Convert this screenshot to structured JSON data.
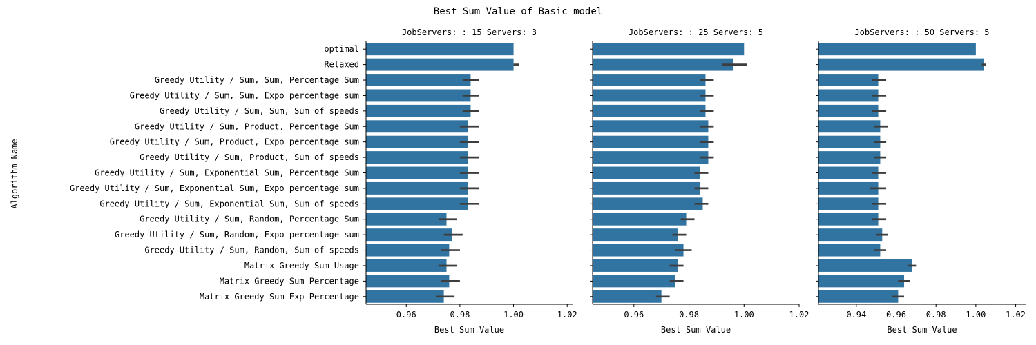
{
  "figure_title": "Best Sum Value of Basic model",
  "ylabel": "Algorithm Name",
  "colors": {
    "bar": "#3274a1",
    "error": "#3d3d3d"
  },
  "chart_data": [
    {
      "type": "bar",
      "orientation": "horizontal",
      "title": "JobServers: : 15 Servers: 3",
      "xlabel": "Best Sum Value",
      "xlim": [
        0.945,
        1.022
      ],
      "xticks": [
        0.96,
        0.98,
        1.0,
        1.02
      ],
      "xtick_labels": [
        "0.96",
        "0.98",
        "1.00",
        "1.02"
      ],
      "categories": [
        "optimal",
        "Relaxed",
        "Greedy Utility / Sum, Sum, Percentage Sum",
        "Greedy Utility / Sum, Sum, Expo percentage sum",
        "Greedy Utility / Sum, Sum, Sum of speeds",
        "Greedy Utility / Sum, Product, Percentage Sum",
        "Greedy Utility / Sum, Product, Expo percentage sum",
        "Greedy Utility / Sum, Product, Sum of speeds",
        "Greedy Utility / Sum, Exponential Sum, Percentage Sum",
        "Greedy Utility / Sum, Exponential Sum, Expo percentage sum",
        "Greedy Utility / Sum, Exponential Sum, Sum of speeds",
        "Greedy Utility / Sum, Random, Percentage Sum",
        "Greedy Utility / Sum, Random, Expo percentage sum",
        "Greedy Utility / Sum, Random, Sum of speeds",
        "Matrix Greedy Sum Usage",
        "Matrix Greedy Sum Percentage",
        "Matrix Greedy Sum Exp Percentage"
      ],
      "values": [
        1.0,
        1.0,
        0.984,
        0.984,
        0.984,
        0.983,
        0.983,
        0.983,
        0.983,
        0.983,
        0.983,
        0.975,
        0.977,
        0.976,
        0.975,
        0.976,
        0.974
      ],
      "error_low": [
        1.0,
        1.0,
        0.981,
        0.981,
        0.981,
        0.98,
        0.98,
        0.98,
        0.98,
        0.98,
        0.98,
        0.972,
        0.974,
        0.973,
        0.972,
        0.973,
        0.971
      ],
      "error_high": [
        1.0,
        1.002,
        0.987,
        0.987,
        0.987,
        0.987,
        0.987,
        0.987,
        0.987,
        0.987,
        0.987,
        0.979,
        0.981,
        0.98,
        0.979,
        0.98,
        0.978
      ]
    },
    {
      "type": "bar",
      "orientation": "horizontal",
      "title": "JobServers: : 25 Servers: 5",
      "xlabel": "Best Sum Value",
      "xlim": [
        0.945,
        1.02
      ],
      "xticks": [
        0.96,
        0.98,
        1.0,
        1.02
      ],
      "xtick_labels": [
        "0.96",
        "0.98",
        "1.00",
        "1.02"
      ],
      "categories": [
        "optimal",
        "Relaxed",
        "Greedy Utility / Sum, Sum, Percentage Sum",
        "Greedy Utility / Sum, Sum, Expo percentage sum",
        "Greedy Utility / Sum, Sum, Sum of speeds",
        "Greedy Utility / Sum, Product, Percentage Sum",
        "Greedy Utility / Sum, Product, Expo percentage sum",
        "Greedy Utility / Sum, Product, Sum of speeds",
        "Greedy Utility / Sum, Exponential Sum, Percentage Sum",
        "Greedy Utility / Sum, Exponential Sum, Expo percentage sum",
        "Greedy Utility / Sum, Exponential Sum, Sum of speeds",
        "Greedy Utility / Sum, Random, Percentage Sum",
        "Greedy Utility / Sum, Random, Expo percentage sum",
        "Greedy Utility / Sum, Random, Sum of speeds",
        "Matrix Greedy Sum Usage",
        "Matrix Greedy Sum Percentage",
        "Matrix Greedy Sum Exp Percentage"
      ],
      "values": [
        1.0,
        0.996,
        0.986,
        0.986,
        0.986,
        0.987,
        0.987,
        0.987,
        0.984,
        0.984,
        0.985,
        0.979,
        0.976,
        0.978,
        0.976,
        0.975,
        0.97
      ],
      "error_low": [
        1.0,
        0.992,
        0.984,
        0.984,
        0.984,
        0.984,
        0.984,
        0.984,
        0.982,
        0.982,
        0.982,
        0.977,
        0.974,
        0.975,
        0.973,
        0.973,
        0.968
      ],
      "error_high": [
        1.0,
        1.001,
        0.989,
        0.989,
        0.989,
        0.989,
        0.989,
        0.989,
        0.987,
        0.987,
        0.987,
        0.982,
        0.979,
        0.981,
        0.978,
        0.978,
        0.973
      ]
    },
    {
      "type": "bar",
      "orientation": "horizontal",
      "title": "JobServers: : 50 Servers: 5",
      "xlabel": "Best Sum Value",
      "xlim": [
        0.921,
        1.025
      ],
      "xticks": [
        0.94,
        0.96,
        0.98,
        1.0,
        1.02
      ],
      "xtick_labels": [
        "0.94",
        "0.96",
        "0.98",
        "1.00",
        "1.02"
      ],
      "categories": [
        "optimal",
        "Relaxed",
        "Greedy Utility / Sum, Sum, Percentage Sum",
        "Greedy Utility / Sum, Sum, Expo percentage sum",
        "Greedy Utility / Sum, Sum, Sum of speeds",
        "Greedy Utility / Sum, Product, Percentage Sum",
        "Greedy Utility / Sum, Product, Expo percentage sum",
        "Greedy Utility / Sum, Product, Sum of speeds",
        "Greedy Utility / Sum, Exponential Sum, Percentage Sum",
        "Greedy Utility / Sum, Exponential Sum, Expo percentage sum",
        "Greedy Utility / Sum, Exponential Sum, Sum of speeds",
        "Greedy Utility / Sum, Random, Percentage Sum",
        "Greedy Utility / Sum, Random, Expo percentage sum",
        "Greedy Utility / Sum, Random, Sum of speeds",
        "Matrix Greedy Sum Usage",
        "Matrix Greedy Sum Percentage",
        "Matrix Greedy Sum Exp Percentage"
      ],
      "values": [
        1.0,
        1.004,
        0.951,
        0.951,
        0.951,
        0.952,
        0.952,
        0.952,
        0.951,
        0.951,
        0.951,
        0.951,
        0.953,
        0.952,
        0.968,
        0.964,
        0.961
      ],
      "error_low": [
        1.0,
        1.003,
        0.948,
        0.948,
        0.948,
        0.949,
        0.949,
        0.949,
        0.948,
        0.947,
        0.948,
        0.948,
        0.95,
        0.949,
        0.966,
        0.961,
        0.958
      ],
      "error_high": [
        1.0,
        1.005,
        0.955,
        0.955,
        0.955,
        0.956,
        0.955,
        0.955,
        0.955,
        0.955,
        0.955,
        0.955,
        0.956,
        0.955,
        0.97,
        0.967,
        0.964
      ]
    }
  ]
}
